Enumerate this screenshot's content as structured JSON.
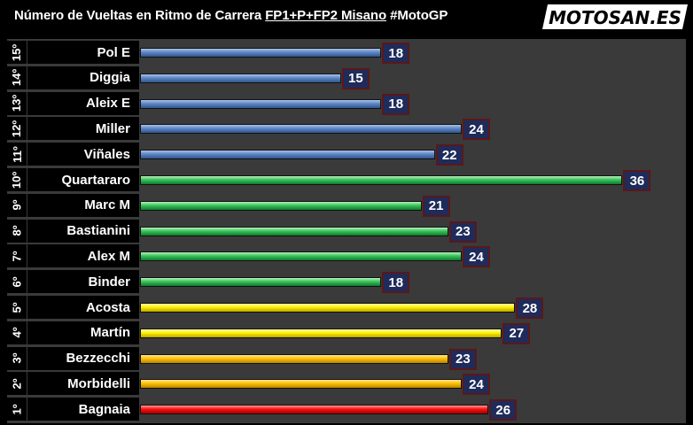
{
  "header": {
    "title_part1": "Número de Vueltas en Ritmo de Carrera ",
    "title_underlined": "FP1+P+FP2 Misano",
    "title_part2": " #MotoGP",
    "logo_text": "MOTOSAN.ES"
  },
  "colors": {
    "background": "#000000",
    "plot_area": "#3a3a3a",
    "value_box": "#1f2b5a",
    "value_box_border": "#5a1818",
    "blue": "#5e86c4",
    "green": "#39c35a",
    "yellow": "#fff000",
    "orange": "#ffc000",
    "red": "#ff1010"
  },
  "chart_data": {
    "type": "bar",
    "orientation": "horizontal",
    "title": "Número de Vueltas en Ritmo de Carrera FP1+P+FP2 Misano #MotoGP",
    "xlim": [
      0,
      37
    ],
    "grid": false,
    "legend": "none",
    "rows": [
      {
        "rank": "15º",
        "rider": "Pol E",
        "value": 18,
        "color": "blue"
      },
      {
        "rank": "14º",
        "rider": "Diggia",
        "value": 15,
        "color": "blue"
      },
      {
        "rank": "13º",
        "rider": "Aleix E",
        "value": 18,
        "color": "blue"
      },
      {
        "rank": "12º",
        "rider": "Miller",
        "value": 24,
        "color": "blue"
      },
      {
        "rank": "11º",
        "rider": "Viñales",
        "value": 22,
        "color": "blue"
      },
      {
        "rank": "10º",
        "rider": "Quartararo",
        "value": 36,
        "color": "green"
      },
      {
        "rank": "9º",
        "rider": "Marc M",
        "value": 21,
        "color": "green"
      },
      {
        "rank": "8º",
        "rider": "Bastianini",
        "value": 23,
        "color": "green"
      },
      {
        "rank": "7º",
        "rider": "Alex M",
        "value": 24,
        "color": "green"
      },
      {
        "rank": "6º",
        "rider": "Binder",
        "value": 18,
        "color": "green"
      },
      {
        "rank": "5º",
        "rider": "Acosta",
        "value": 28,
        "color": "yellow"
      },
      {
        "rank": "4º",
        "rider": "Martín",
        "value": 27,
        "color": "yellow"
      },
      {
        "rank": "3º",
        "rider": "Bezzecchi",
        "value": 23,
        "color": "orange"
      },
      {
        "rank": "2º",
        "rider": "Morbidelli",
        "value": 24,
        "color": "orange"
      },
      {
        "rank": "1º",
        "rider": "Bagnaia",
        "value": 26,
        "color": "red"
      }
    ]
  }
}
